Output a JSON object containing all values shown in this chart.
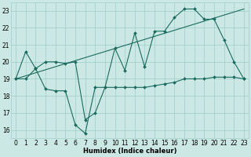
{
  "line1_x": [
    0,
    1,
    2,
    3,
    4,
    5,
    6,
    7,
    8,
    9,
    10,
    11,
    12,
    13,
    14,
    15,
    16,
    17,
    18,
    19,
    20,
    21,
    22,
    23
  ],
  "line1_y": [
    19.0,
    20.6,
    19.6,
    20.0,
    20.0,
    19.9,
    20.0,
    16.6,
    17.0,
    18.5,
    20.8,
    19.5,
    21.7,
    19.7,
    21.8,
    21.8,
    22.6,
    23.1,
    23.1,
    22.5,
    22.5,
    21.3,
    20.0,
    19.0
  ],
  "line2_x": [
    0,
    1,
    2,
    3,
    4,
    5,
    6,
    7,
    8,
    9,
    10,
    11,
    12,
    13,
    14,
    15,
    16,
    17,
    18,
    19,
    20,
    21,
    22,
    23
  ],
  "line2_y": [
    19.0,
    19.0,
    19.6,
    18.4,
    18.3,
    18.3,
    16.3,
    15.8,
    18.5,
    18.5,
    18.5,
    18.5,
    18.5,
    18.5,
    18.6,
    18.7,
    18.8,
    19.0,
    19.0,
    19.0,
    19.1,
    19.1,
    19.1,
    19.0
  ],
  "line3_x": [
    0,
    23
  ],
  "line3_y": [
    19.0,
    23.1
  ],
  "color": "#1a6b5e",
  "bg_color": "#cce8e4",
  "grid_color": "#9ecec8",
  "xlabel": "Humidex (Indice chaleur)",
  "ylim": [
    15.5,
    23.5
  ],
  "xlim": [
    -0.5,
    23.5
  ],
  "yticks": [
    16,
    17,
    18,
    19,
    20,
    21,
    22,
    23
  ],
  "xticks": [
    0,
    1,
    2,
    3,
    4,
    5,
    6,
    7,
    8,
    9,
    10,
    11,
    12,
    13,
    14,
    15,
    16,
    17,
    18,
    19,
    20,
    21,
    22,
    23
  ],
  "xlabel_fontsize": 6.0,
  "tick_fontsize": 5.5
}
